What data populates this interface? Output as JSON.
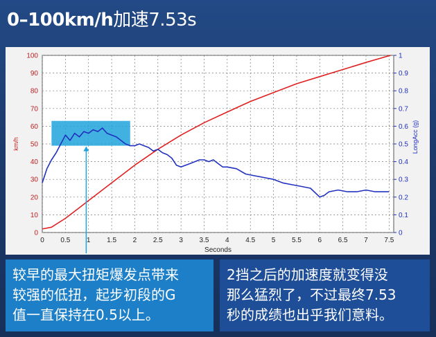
{
  "title": {
    "main": "0–100km/h",
    "suffix": "加速7.53s"
  },
  "captions": {
    "left": [
      "较早的最大扭矩爆发点带来",
      "较强的低扭，起步初段的G",
      "值一直保持在0.5以上。"
    ],
    "right": [
      "2挡之后的加速度就变得没",
      "那么猛烈了，不过最终7.53",
      "秒的成绩也出乎我们意料。"
    ]
  },
  "chart_data": {
    "type": "line",
    "xlabel": "Seconds",
    "ylabel_left": "km/h",
    "ylabel_right": "LongAcc (g)",
    "xlim": [
      0,
      7.6
    ],
    "ylim_left": [
      0,
      100
    ],
    "ylim_right": [
      0,
      1
    ],
    "x_ticks": [
      "0",
      "0.5",
      "1",
      "1.5",
      "2",
      "2.5",
      "3",
      "3.5",
      "4",
      "4.5",
      "5",
      "5.5",
      "6",
      "6.5",
      "7",
      "7.5"
    ],
    "y_left_ticks": [
      "0",
      "10",
      "20",
      "30",
      "40",
      "50",
      "60",
      "70",
      "80",
      "90",
      "100"
    ],
    "y_right_ticks": [
      "0",
      "0.1",
      "0.2",
      "0.3",
      "0.4",
      "0.5",
      "0.6",
      "0.7",
      "0.8",
      "0.9",
      "1"
    ],
    "grid": true,
    "series": [
      {
        "axis": "left",
        "color": "#e02020",
        "x": [
          0,
          0.2,
          0.5,
          0.8,
          1.0,
          1.5,
          2.0,
          2.5,
          3.0,
          3.5,
          4.0,
          4.5,
          5.0,
          5.5,
          6.0,
          6.5,
          7.0,
          7.53
        ],
        "y": [
          2,
          3,
          8,
          14,
          18,
          28,
          38,
          47,
          55,
          62,
          68,
          74,
          79,
          84,
          88,
          92,
          96,
          100
        ]
      },
      {
        "axis": "right",
        "color": "#2030c0",
        "x": [
          0,
          0.1,
          0.2,
          0.3,
          0.4,
          0.5,
          0.6,
          0.7,
          0.8,
          0.9,
          1.0,
          1.1,
          1.2,
          1.3,
          1.4,
          1.5,
          1.6,
          1.7,
          1.8,
          1.9,
          2.0,
          2.1,
          2.2,
          2.3,
          2.4,
          2.5,
          2.6,
          2.7,
          2.8,
          2.9,
          3.0,
          3.1,
          3.2,
          3.3,
          3.4,
          3.5,
          3.6,
          3.7,
          3.8,
          3.9,
          4.0,
          4.2,
          4.4,
          4.6,
          4.8,
          5.0,
          5.1,
          5.2,
          5.4,
          5.6,
          5.8,
          6.0,
          6.1,
          6.2,
          6.4,
          6.6,
          6.8,
          7.0,
          7.2,
          7.4,
          7.5
        ],
        "y": [
          0.28,
          0.36,
          0.41,
          0.45,
          0.5,
          0.55,
          0.52,
          0.56,
          0.54,
          0.57,
          0.56,
          0.58,
          0.57,
          0.59,
          0.56,
          0.55,
          0.54,
          0.52,
          0.5,
          0.49,
          0.49,
          0.5,
          0.49,
          0.48,
          0.46,
          0.47,
          0.45,
          0.44,
          0.42,
          0.38,
          0.37,
          0.38,
          0.39,
          0.4,
          0.41,
          0.41,
          0.4,
          0.41,
          0.39,
          0.37,
          0.37,
          0.36,
          0.33,
          0.32,
          0.31,
          0.3,
          0.29,
          0.28,
          0.27,
          0.26,
          0.25,
          0.2,
          0.21,
          0.23,
          0.24,
          0.23,
          0.23,
          0.24,
          0.23,
          0.23,
          0.23
        ]
      }
    ],
    "highlight": {
      "x_range": [
        0.2,
        1.9
      ],
      "y_range_right": [
        0.49,
        0.63
      ],
      "color": "#1fa3dc",
      "pointer_x": 0.95
    }
  }
}
